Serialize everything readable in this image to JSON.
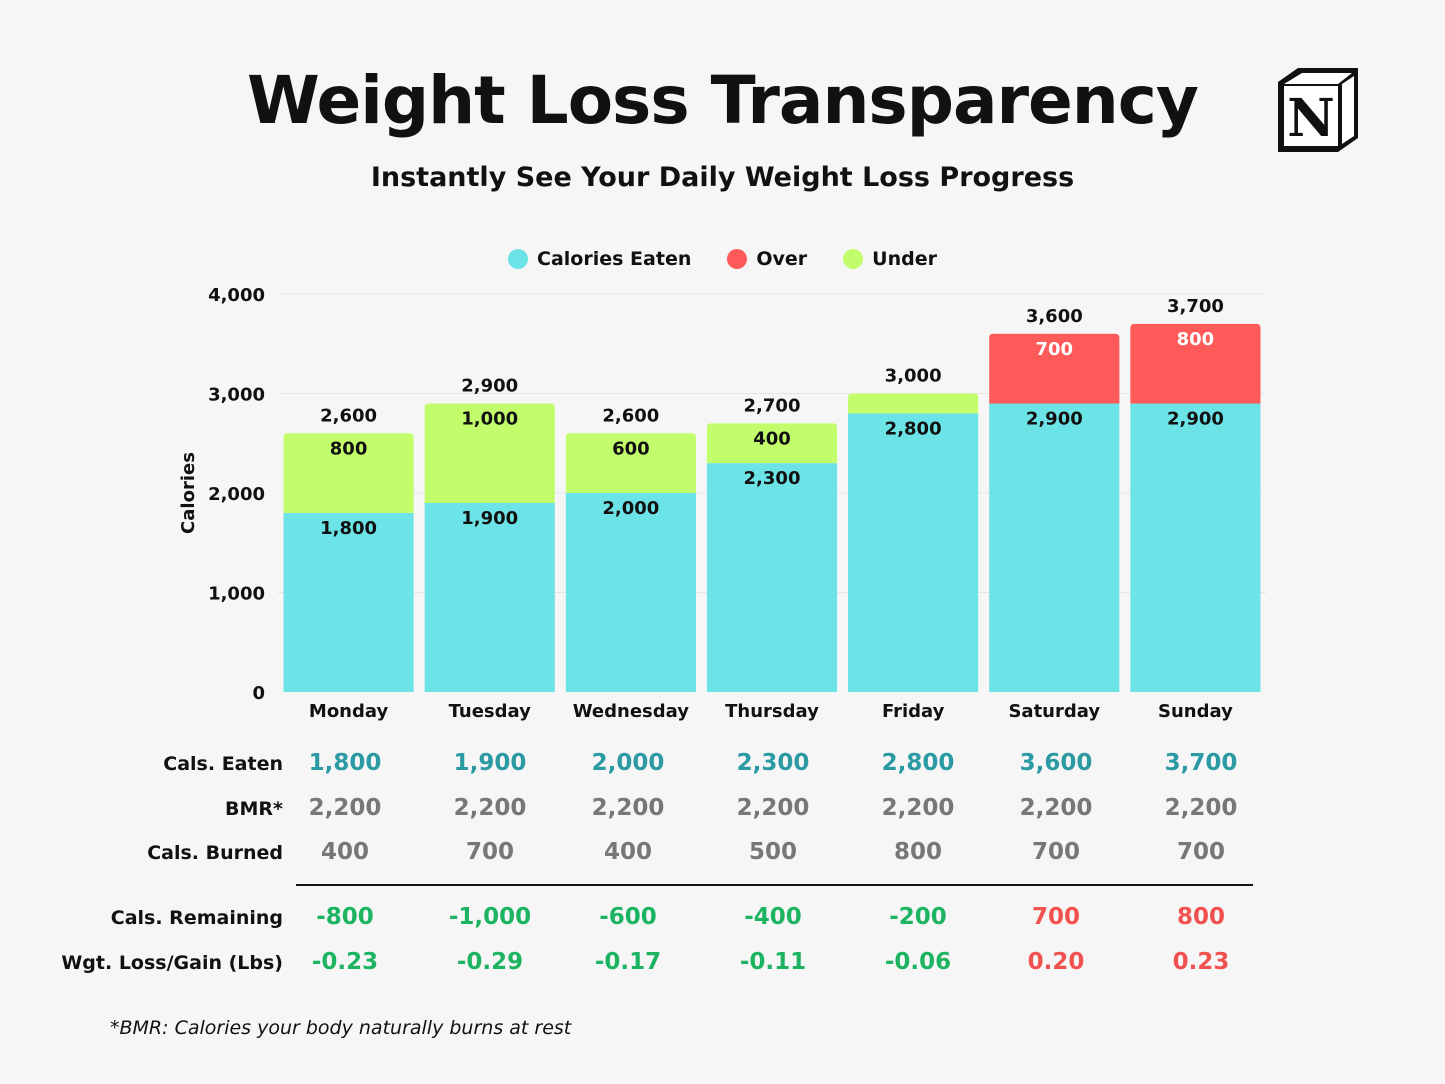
{
  "title": "Weight Loss Transparency",
  "subtitle": "Instantly See Your Daily Weight Loss Progress",
  "logo": {
    "letter": "N",
    "icon": "notion-logo-icon"
  },
  "colors": {
    "eaten": "#6ce3e6",
    "over": "#ff5a5a",
    "under": "#c2fd6b",
    "eaten_text": "#2b9aa3",
    "neutral_text": "#777777",
    "negative_text": "#1db461",
    "positive_text": "#f0524f"
  },
  "chart_data": {
    "type": "bar",
    "stacked": true,
    "categories": [
      "Monday",
      "Tuesday",
      "Wednesday",
      "Thursday",
      "Friday",
      "Saturday",
      "Sunday"
    ],
    "series": [
      {
        "name": "Calories Eaten",
        "color": "#6ce3e6",
        "values": [
          1800,
          1900,
          2000,
          2300,
          2800,
          2900,
          2900
        ],
        "labels": [
          "1,800",
          "1,900",
          "2,000",
          "2,300",
          "2,800",
          "2,900",
          "2,900"
        ]
      },
      {
        "name": "Over",
        "color": "#ff5a5a",
        "values": [
          0,
          0,
          0,
          0,
          0,
          700,
          800
        ],
        "labels": [
          "",
          "",
          "",
          "",
          "",
          "700",
          "800"
        ]
      },
      {
        "name": "Under",
        "color": "#c2fd6b",
        "values": [
          800,
          1000,
          600,
          400,
          200,
          0,
          0
        ],
        "labels": [
          "800",
          "1,000",
          "600",
          "400",
          "",
          "",
          ""
        ]
      }
    ],
    "totals": [
      2600,
      2900,
      2600,
      2700,
      3000,
      3600,
      3700
    ],
    "total_labels": [
      "2,600",
      "2,900",
      "2,600",
      "2,700",
      "3,000",
      "3,600",
      "3,700"
    ],
    "ylabel": "Calories",
    "ylim": [
      0,
      4000
    ],
    "yticks": [
      0,
      1000,
      2000,
      3000,
      4000
    ],
    "ytick_labels": [
      "0",
      "1,000",
      "2,000",
      "3,000",
      "4,000"
    ],
    "grid": true,
    "legend_position": "top-center"
  },
  "table": {
    "rows": [
      {
        "label": "Cals. Eaten",
        "style": "eaten",
        "values": [
          "1,800",
          "1,900",
          "2,000",
          "2,300",
          "2,800",
          "3,600",
          "3,700"
        ]
      },
      {
        "label": "BMR*",
        "style": "neutral",
        "values": [
          "2,200",
          "2,200",
          "2,200",
          "2,200",
          "2,200",
          "2,200",
          "2,200"
        ]
      },
      {
        "label": "Cals. Burned",
        "style": "neutral",
        "values": [
          "400",
          "700",
          "400",
          "500",
          "800",
          "700",
          "700"
        ]
      },
      {
        "label": "Cals. Remaining",
        "style": "signed",
        "values": [
          "-800",
          "-1,000",
          "-600",
          "-400",
          "-200",
          "700",
          "800"
        ]
      },
      {
        "label": "Wgt. Loss/Gain (Lbs)",
        "style": "signed",
        "values": [
          "-0.23",
          "-0.29",
          "-0.17",
          "-0.11",
          "-0.06",
          "0.20",
          "0.23"
        ]
      }
    ]
  },
  "footnote": "*BMR: Calories your body naturally burns at rest"
}
